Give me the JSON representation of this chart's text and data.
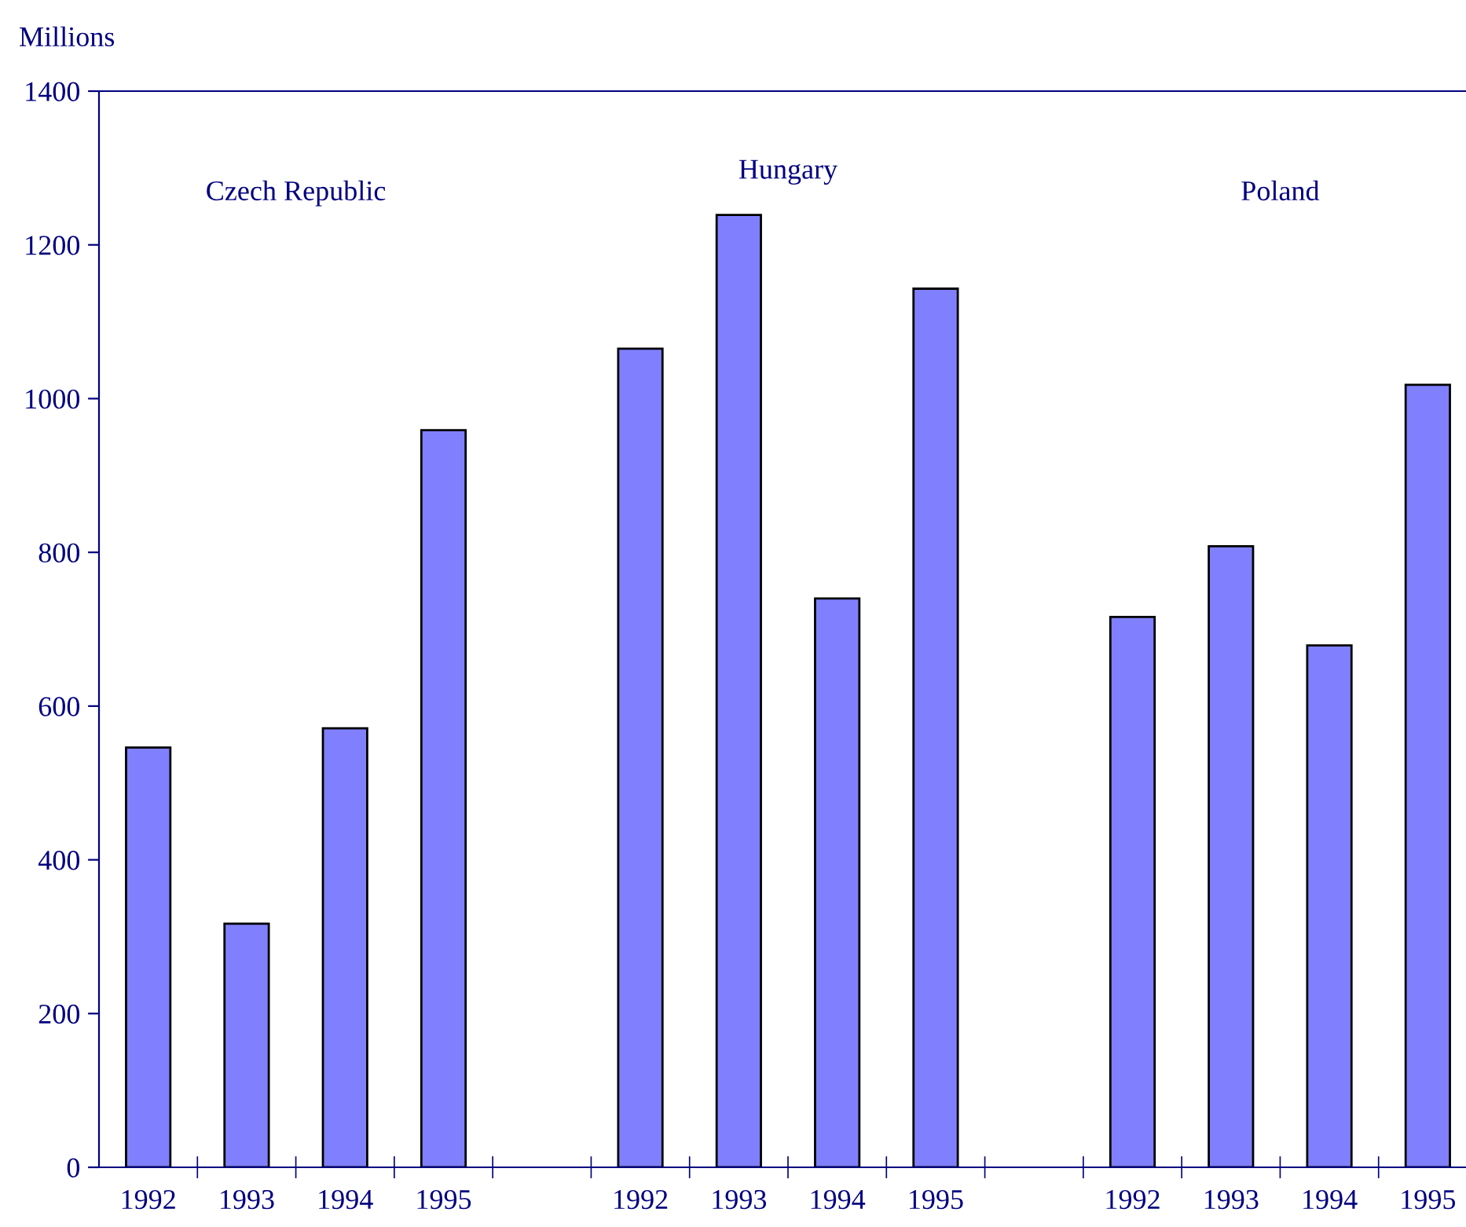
{
  "chart_data": {
    "type": "bar",
    "ylabel": "Millions",
    "categories": [
      "1992",
      "1993",
      "1994",
      "1995",
      null,
      "1992",
      "1993",
      "1994",
      "1995",
      null,
      "1992",
      "1993",
      "1994",
      "1995"
    ],
    "values": [
      546,
      317,
      571,
      959,
      null,
      1065,
      1239,
      740,
      1143,
      null,
      716,
      808,
      679,
      1018
    ],
    "color": "#8080ff",
    "ylim": [
      0,
      1400
    ],
    "yticks": [
      0,
      200,
      400,
      600,
      800,
      1000,
      1200,
      1400
    ],
    "annotations": [
      "Czech Republic",
      "Hungary",
      "Poland"
    ],
    "grid": false,
    "legend": false
  }
}
